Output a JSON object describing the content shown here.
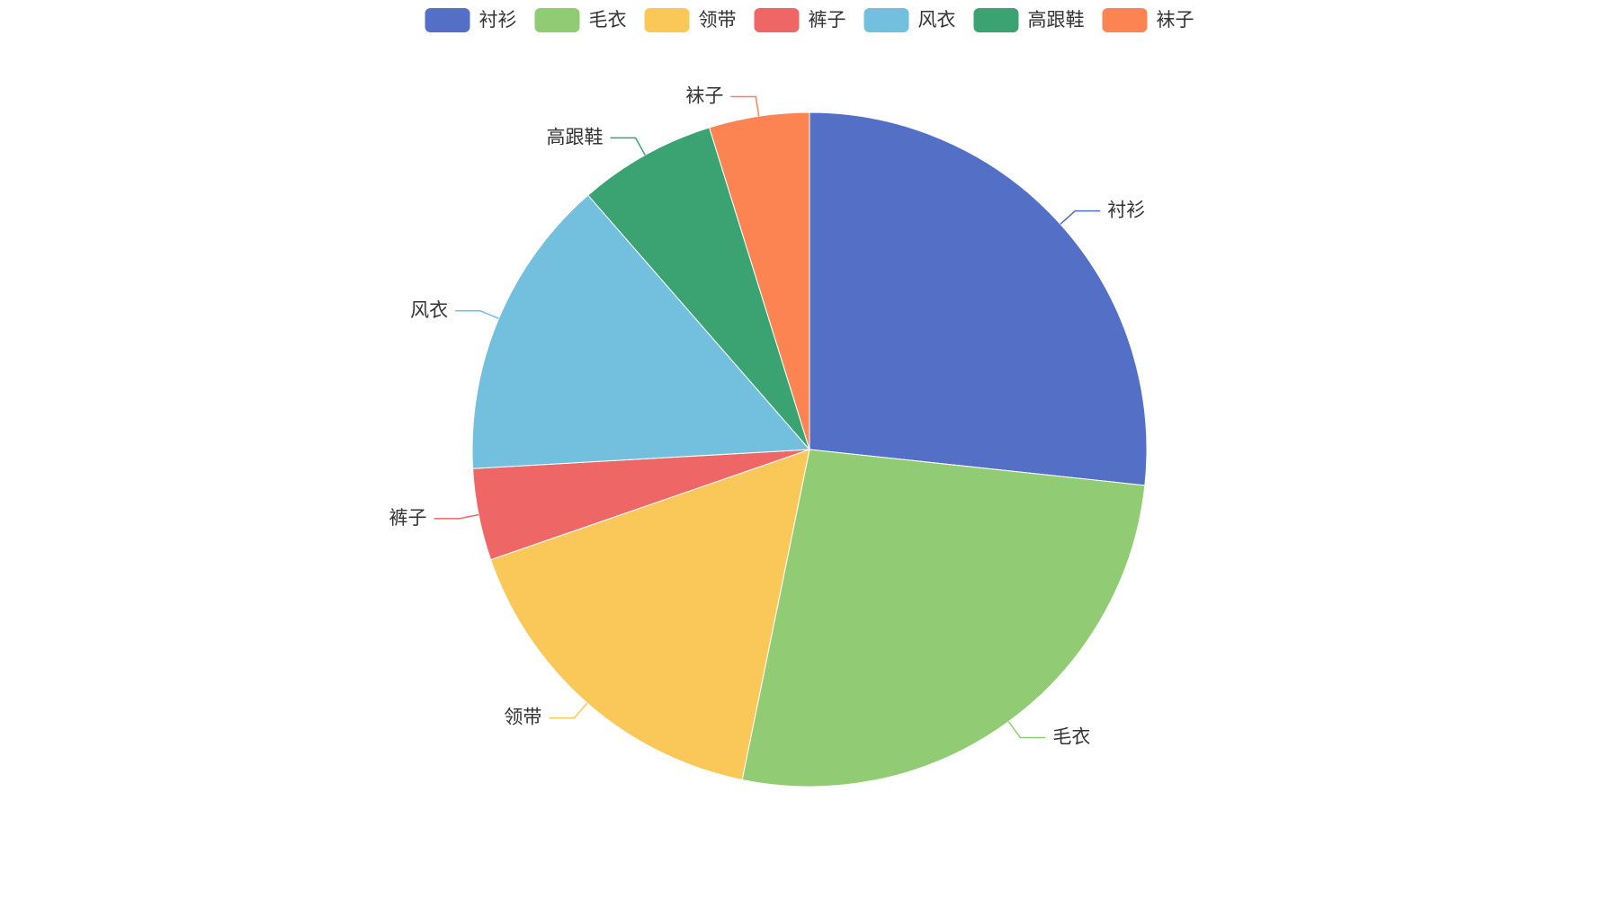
{
  "chart_data": {
    "type": "pie",
    "categories": [
      "衬衫",
      "毛衣",
      "领带",
      "裤子",
      "风衣",
      "高跟鞋",
      "袜子"
    ],
    "values": [
      26.7,
      26.5,
      16.5,
      4.4,
      14.5,
      6.6,
      4.8
    ],
    "colors": [
      "#5470c6",
      "#91cc75",
      "#fac858",
      "#ee6666",
      "#73c0de",
      "#3ba272",
      "#fc8452"
    ],
    "legend": "top"
  }
}
